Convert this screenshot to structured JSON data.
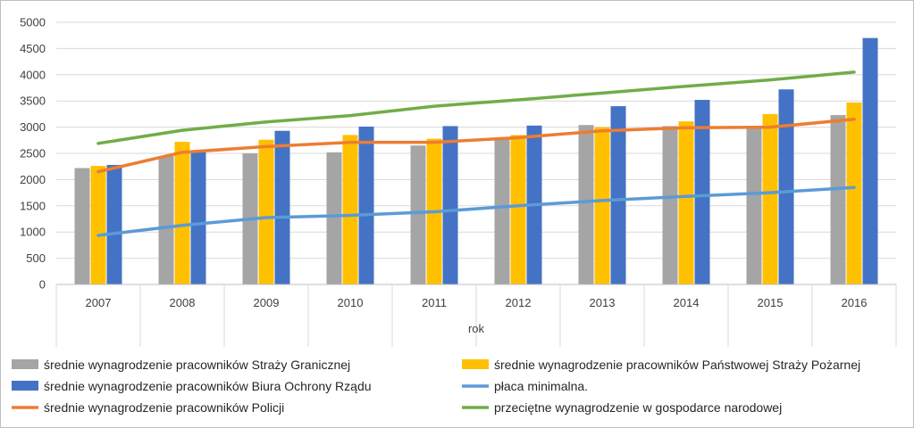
{
  "chart_data": {
    "type": "bar",
    "title": "",
    "xlabel": "rok",
    "ylabel": "",
    "ylim": [
      0,
      5000
    ],
    "yticks": [
      0,
      500,
      1000,
      1500,
      2000,
      2500,
      3000,
      3500,
      4000,
      4500,
      5000
    ],
    "grid": true,
    "legend_position": "bottom",
    "categories": [
      "2007",
      "2008",
      "2009",
      "2010",
      "2011",
      "2012",
      "2013",
      "2014",
      "2015",
      "2016"
    ],
    "series": [
      {
        "name": "średnie wynagrodzenie pracowników Straży Granicznej",
        "kind": "bar",
        "color": "#a5a5a5",
        "values": [
          2220,
          2450,
          2500,
          2520,
          2650,
          2800,
          3040,
          3020,
          3010,
          3230
        ]
      },
      {
        "name": "średnie wynagrodzenie pracowników Państwowej Straży Pożarnej",
        "kind": "bar",
        "color": "#ffc000",
        "values": [
          2260,
          2720,
          2760,
          2850,
          2780,
          2850,
          3000,
          3110,
          3250,
          3470
        ]
      },
      {
        "name": "średnie wynagrodzenie pracowników Biura Ochrony Rządu",
        "kind": "bar",
        "color": "#4472c4",
        "values": [
          2280,
          2540,
          2930,
          3010,
          3020,
          3030,
          3400,
          3520,
          3720,
          4700
        ]
      },
      {
        "name": "płaca minimalna.",
        "kind": "line",
        "color": "#5b9bd5",
        "values": [
          936,
          1126,
          1276,
          1317,
          1386,
          1500,
          1600,
          1680,
          1750,
          1850
        ]
      },
      {
        "name": "średnie wynagrodzenie pracowników Policji",
        "kind": "line",
        "color": "#ed7d31",
        "values": [
          2150,
          2520,
          2630,
          2710,
          2710,
          2800,
          2930,
          2990,
          3000,
          3150
        ]
      },
      {
        "name": "przeciętne wynagrodzenie w gospodarce narodowej",
        "kind": "line",
        "color": "#70ad47",
        "values": [
          2690,
          2940,
          3100,
          3220,
          3400,
          3520,
          3650,
          3780,
          3900,
          4050
        ]
      }
    ]
  }
}
